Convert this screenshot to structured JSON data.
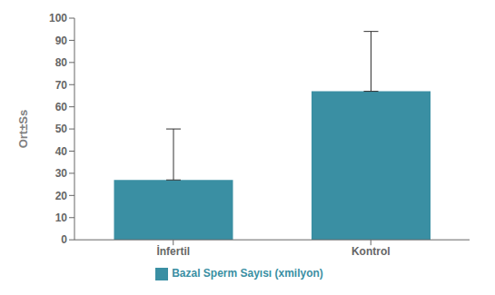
{
  "chart_data": {
    "type": "bar",
    "categories": [
      "İnfertil",
      "Kontrol"
    ],
    "series": [
      {
        "name": "Bazal Sperm Sayısı (xmilyon)",
        "color": "#3a8fa3",
        "values": [
          27,
          67
        ],
        "errors": [
          23,
          27
        ]
      }
    ],
    "ylabel": "Ort±Ss",
    "ylim": [
      0,
      100
    ],
    "yticks": [
      0,
      10,
      20,
      30,
      40,
      50,
      60,
      70,
      80,
      90,
      100
    ],
    "grid": false,
    "legend": "bottom"
  }
}
